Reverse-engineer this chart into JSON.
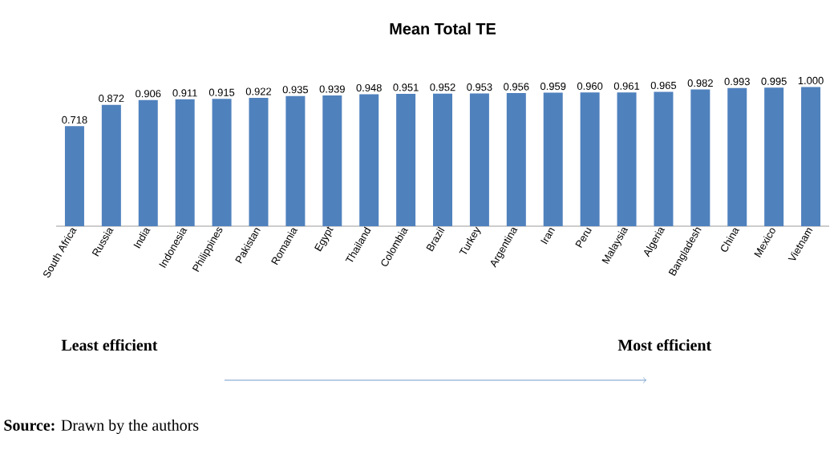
{
  "chart_data": {
    "type": "bar",
    "title": "Mean Total TE",
    "categories": [
      "South Africa",
      "Russia",
      "India",
      "Indonesia",
      "Philippines",
      "Pakistan",
      "Romania",
      "Egypt",
      "Thailand",
      "Colombia",
      "Brazil",
      "Turkey",
      "Argentina",
      "Iran",
      "Peru",
      "Malaysia",
      "Algeria",
      "Bangladesh",
      "China",
      "Mexico",
      "Vietnam"
    ],
    "values": [
      0.718,
      0.872,
      0.906,
      0.911,
      0.915,
      0.922,
      0.935,
      0.939,
      0.948,
      0.951,
      0.952,
      0.953,
      0.956,
      0.959,
      0.96,
      0.961,
      0.965,
      0.982,
      0.993,
      0.995,
      1.0
    ],
    "value_labels": [
      "0.718",
      "0.872",
      "0.906",
      "0.911",
      "0.915",
      "0.922",
      "0.935",
      "0.939",
      "0.948",
      "0.951",
      "0.952",
      "0.953",
      "0.956",
      "0.959",
      "0.960",
      "0.961",
      "0.965",
      "0.982",
      "0.993",
      "0.995",
      "1.000"
    ],
    "color": "#4f81bd",
    "annotations": [
      "Least efficient",
      "Most efficient",
      "**Source:** Drawn by the authors"
    ]
  }
}
